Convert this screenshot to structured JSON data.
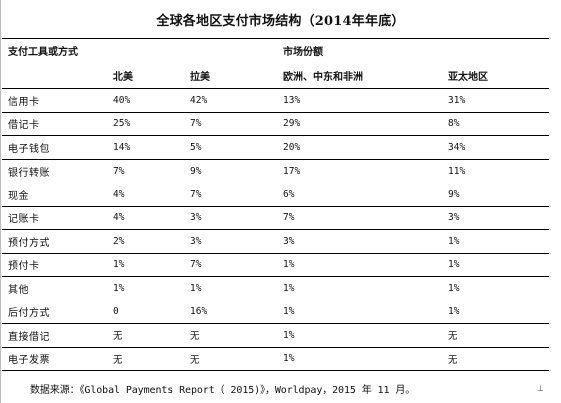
{
  "title": "全球各地区支付市场结构（2014年年底）",
  "header": {
    "tool_label": "支付工具或方式",
    "share_label": "市场份额"
  },
  "regions": [
    "北美",
    "拉美",
    "欧洲、中东和非洲",
    "亚太地区"
  ],
  "rows": [
    {
      "name": "信用卡",
      "values": [
        "40%",
        "42%",
        "13%",
        "31%"
      ],
      "line_below": true
    },
    {
      "name": "借记卡",
      "values": [
        "25%",
        "7%",
        "29%",
        "8%"
      ],
      "line_below": true
    },
    {
      "name": "电子钱包",
      "values": [
        "14%",
        "5%",
        "20%",
        "34%"
      ],
      "line_below": true
    },
    {
      "name": "银行转账",
      "values": [
        "7%",
        "9%",
        "17%",
        "11%"
      ],
      "line_below": false
    },
    {
      "name": "现金",
      "values": [
        "4%",
        "7%",
        "6%",
        "9%"
      ],
      "line_below": true
    },
    {
      "name": "记账卡",
      "values": [
        "4%",
        "3%",
        "7%",
        "3%"
      ],
      "line_below": true
    },
    {
      "name": "预付方式",
      "values": [
        "2%",
        "3%",
        "3%",
        "1%"
      ],
      "line_below": true
    },
    {
      "name": "预付卡",
      "values": [
        "1%",
        "7%",
        "1%",
        "1%"
      ],
      "line_below": true
    },
    {
      "name": "其他",
      "values": [
        "1%",
        "1%",
        "1%",
        "1%"
      ],
      "line_below": false
    },
    {
      "name": "后付方式",
      "values": [
        "0",
        "16%",
        "1%",
        "1%"
      ],
      "line_below": true
    },
    {
      "name": "直接借记",
      "values": [
        "无",
        "无",
        "1%",
        "无"
      ],
      "line_below": true
    },
    {
      "name": "电子发票",
      "values": [
        "无",
        "无",
        "1%",
        "无"
      ],
      "line_below": true
    }
  ],
  "source": "数据来源：《Global Payments Report（ 2015)》，Worldpay，2015 年 11 月。",
  "corner_mark": "⊥"
}
